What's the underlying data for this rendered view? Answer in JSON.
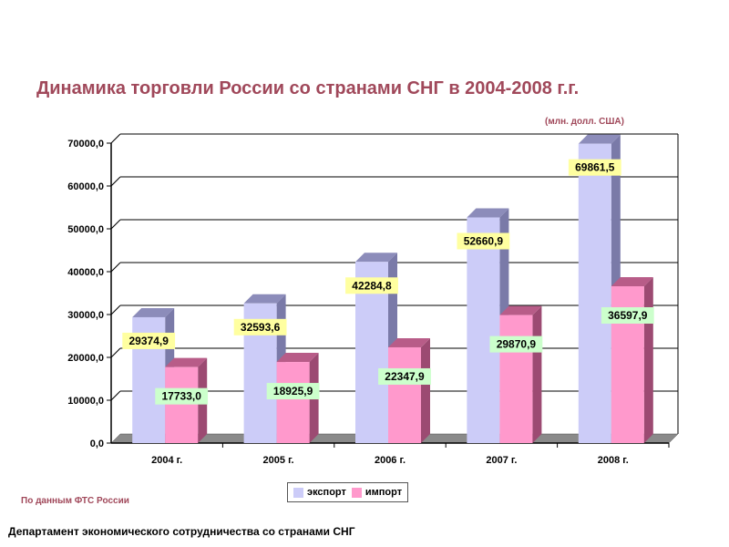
{
  "title": "Динамика торговли России со странами СНГ в 2004-2008 г.г.",
  "units": "(млн. долл. США)",
  "source": "По данным ФТС России",
  "footer": "Департамент экономического сотрудничества со странами СНГ",
  "colors": {
    "title": "#a0485a",
    "export_front": "#ccccf8",
    "export_side": "#7a7aa8",
    "export_top": "#8c8cba",
    "import_front": "#ff99cc",
    "import_side": "#9c4a72",
    "import_top": "#b85c88",
    "label_export_bg": "#ffffa0",
    "label_import_bg": "#ccffcc"
  },
  "chart_data": {
    "type": "bar",
    "title": "Динамика торговли России со странами СНГ в 2004-2008 г.г.",
    "ylabel": "(млн. долл. США)",
    "ylim": [
      0,
      70000
    ],
    "yticks": [
      "0,0",
      "10000,0",
      "20000,0",
      "30000,0",
      "40000,0",
      "50000,0",
      "60000,0",
      "70000,0"
    ],
    "grid": true,
    "legend_position": "bottom",
    "categories": [
      "2004 г.",
      "2005 г.",
      "2006 г.",
      "2007 г.",
      "2008 г."
    ],
    "series": [
      {
        "name": "экспорт",
        "values": [
          29374.9,
          32593.6,
          42284.8,
          52660.9,
          69861.5
        ],
        "labels": [
          "29374,9",
          "32593,6",
          "42284,8",
          "52660,9",
          "69861,5"
        ]
      },
      {
        "name": "импорт",
        "values": [
          17733.0,
          18925.9,
          22347.9,
          29870.9,
          36597.9
        ],
        "labels": [
          "17733,0",
          "18925,9",
          "22347,9",
          "29870,9",
          "36597,9"
        ]
      }
    ]
  }
}
